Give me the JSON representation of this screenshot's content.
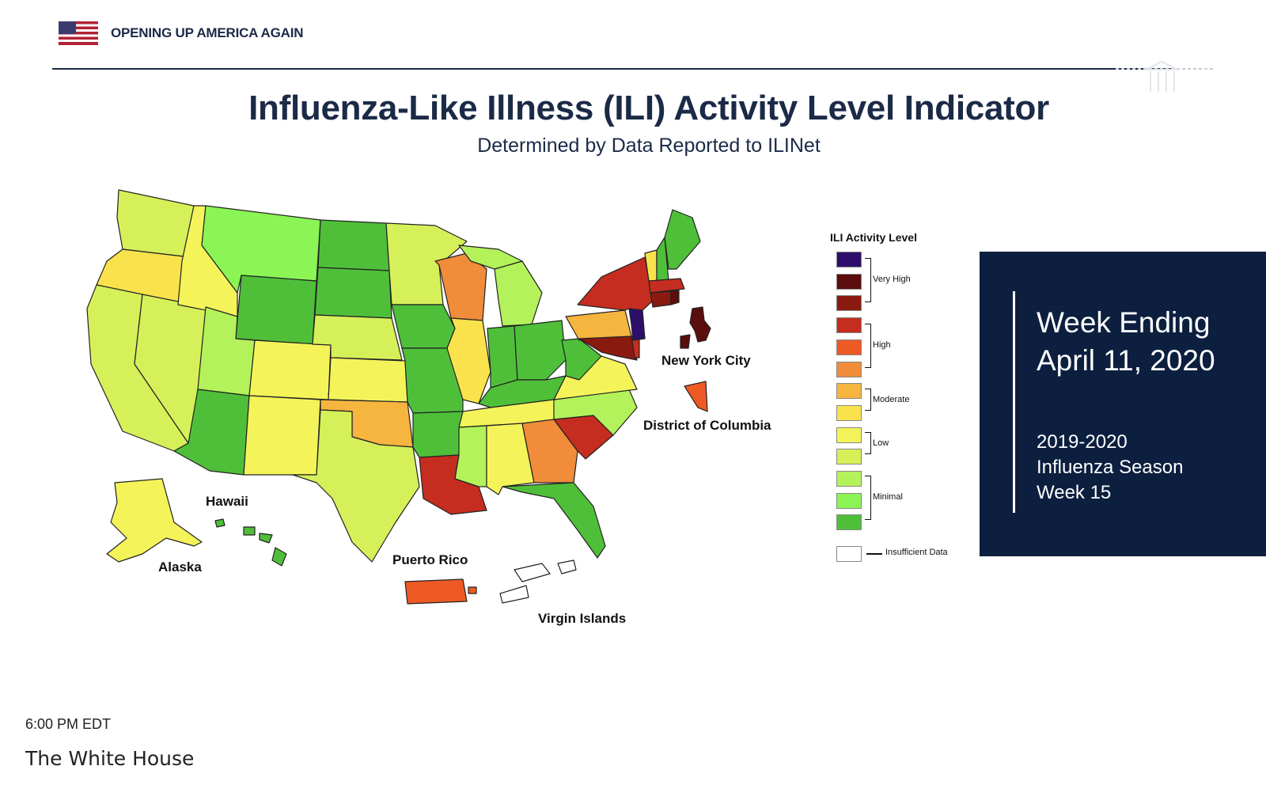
{
  "header": {
    "text": "OPENING UP AMERICA AGAIN",
    "flag_icon": "us-flag-icon"
  },
  "title": "Influenza-Like Illness (ILI) Activity Level Indicator",
  "subtitle": "Determined by Data Reported to ILINet",
  "map": {
    "labels": {
      "nyc": "New York City",
      "dc": "District of Columbia",
      "hawaii": "Hawaii",
      "alaska": "Alaska",
      "puerto_rico": "Puerto Rico",
      "virgin_islands": "Virgin Islands"
    }
  },
  "legend": {
    "title": "ILI Activity Level",
    "levels": [
      {
        "level": 13,
        "color": "#2d0f6b"
      },
      {
        "level": 12,
        "color": "#5c0d0d"
      },
      {
        "level": 11,
        "color": "#8a1a10"
      },
      {
        "level": 10,
        "color": "#c42d1f"
      },
      {
        "level": 9,
        "color": "#ee5a24"
      },
      {
        "level": 8,
        "color": "#f08c3a"
      },
      {
        "level": 7,
        "color": "#f6b53f"
      },
      {
        "level": 6,
        "color": "#f9e24c"
      },
      {
        "level": 5,
        "color": "#f4f45a"
      },
      {
        "level": 4,
        "color": "#d6f05a"
      },
      {
        "level": 3,
        "color": "#b3f25a"
      },
      {
        "level": 2,
        "color": "#8af555"
      },
      {
        "level": 1,
        "color": "#4fbf3a"
      }
    ],
    "groups": {
      "very_high": "Very High",
      "high": "High",
      "moderate": "Moderate",
      "low": "Low",
      "minimal": "Minimal",
      "insufficient": "Insufficient Data"
    }
  },
  "panel": {
    "week_line1": "Week Ending",
    "week_line2": "April 11, 2020",
    "season_line1": "2019-2020",
    "season_line2": "Influenza Season",
    "season_line3": "Week 15"
  },
  "footer": {
    "time": "6:00 PM EDT",
    "source": "The White House"
  }
}
